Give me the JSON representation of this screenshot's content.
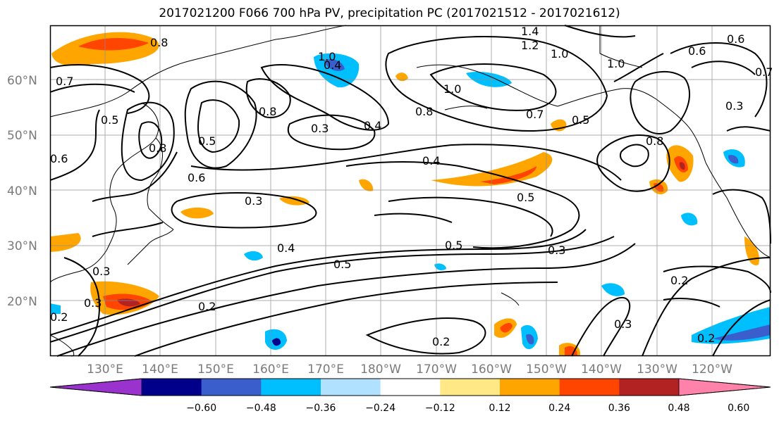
{
  "title": "2017021200 F066 700 hPa PV, precipitation PC (2017021512 - 2017021612)",
  "lat_labels": [
    {
      "id": "60",
      "text": "60°N"
    },
    {
      "id": "50",
      "text": "50°N"
    },
    {
      "id": "40",
      "text": "40°N"
    },
    {
      "id": "30",
      "text": "30°N"
    },
    {
      "id": "20",
      "text": "20°N"
    }
  ],
  "lon_labels": [
    {
      "id": "130e",
      "text": "130°E"
    },
    {
      "id": "140e",
      "text": "140°E"
    },
    {
      "id": "150e",
      "text": "150°E"
    },
    {
      "id": "160e",
      "text": "160°E"
    },
    {
      "id": "170e",
      "text": "170°E"
    },
    {
      "id": "180w",
      "text": "180°W"
    },
    {
      "id": "170w",
      "text": "170°W"
    },
    {
      "id": "160w",
      "text": "160°W"
    },
    {
      "id": "150w",
      "text": "150°W"
    },
    {
      "id": "140w",
      "text": "140°W"
    },
    {
      "id": "130w",
      "text": "130°W"
    },
    {
      "id": "120w",
      "text": "120°W"
    }
  ],
  "colorbar": {
    "colors": [
      "#9a32cd",
      "#00008b",
      "#3a5fcd",
      "#00bfff",
      "#b0e2ff",
      "#ffffff",
      "#ffe885",
      "#ffa500",
      "#ff4500",
      "#b22222",
      "#ff82ab"
    ],
    "ticks": [
      "−0.60",
      "−0.48",
      "−0.36",
      "−0.24",
      "−0.12",
      "0.12",
      "0.24",
      "0.36",
      "0.48",
      "0.60"
    ]
  },
  "contour_labels": {
    "c14": "1.4",
    "c12": "1.2",
    "c10a": "1.0",
    "c10b": "1.0",
    "c10c": "1.0",
    "c10d": "1.0",
    "c08a": "0.8",
    "c08b": "0.8",
    "c08c": "0.8",
    "c08d": "0.8",
    "c08e": "0.8",
    "c07a": "0.7",
    "c07b": "0.7",
    "c07c": "0.7",
    "c06a": "0.6",
    "c06b": "0.6",
    "c06c": "0.6",
    "c06d": "0.6",
    "c05a": "0.5",
    "c05b": "0.5",
    "c05c": "0.5",
    "c05d": "0.5",
    "c05e": "0.5",
    "c05f": "0.5",
    "c04a": "0.4",
    "c04b": "0.4",
    "c04c": "0.4",
    "c04d": "0.4",
    "c03a": "0.3",
    "c03b": "0.3",
    "c03c": "0.3",
    "c03d": "0.3",
    "c03e": "0.3",
    "c03f": "0.3",
    "c03g": "0.3",
    "c02a": "0.2",
    "c02b": "0.2",
    "c02c": "0.2",
    "c02d": "0.2",
    "c02e": "0.2"
  }
}
